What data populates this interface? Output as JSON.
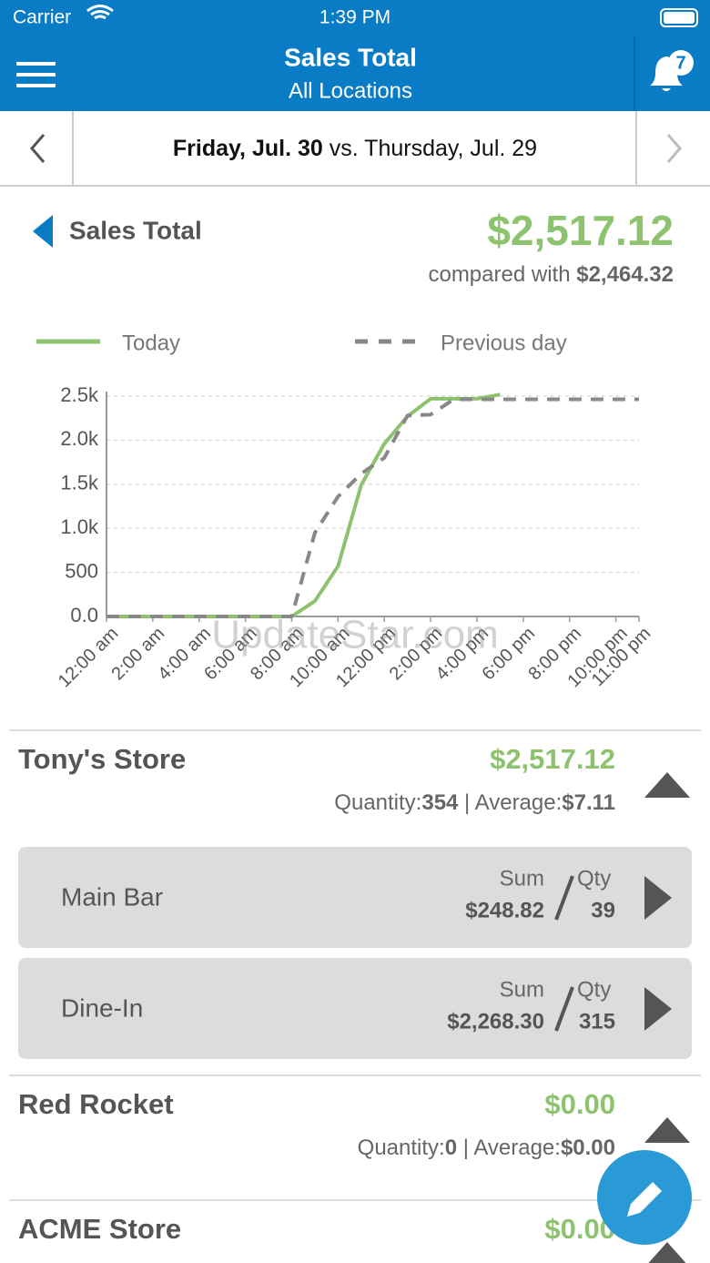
{
  "status_bar": {
    "carrier": "Carrier",
    "time": "1:39 PM"
  },
  "header": {
    "title": "Sales Total",
    "subtitle": "All Locations",
    "badge": "7"
  },
  "date_bar": {
    "date": "Friday, Jul. 30",
    "compare": "vs. Thursday, Jul. 29"
  },
  "summary": {
    "title": "Sales Total",
    "total": "$2,517.12",
    "compared_label": "compared with",
    "compared_value": "$2,464.32"
  },
  "chart_data": {
    "type": "line",
    "x": [
      0,
      1,
      2,
      3,
      4,
      5,
      6,
      7,
      8,
      9,
      10,
      11,
      12,
      13,
      14,
      15,
      16,
      17,
      18,
      19,
      20,
      21,
      22,
      23
    ],
    "xlim": [
      0,
      23
    ],
    "xticks": [
      {
        "value": 0,
        "label": "12:00 am"
      },
      {
        "value": 2,
        "label": "2:00 am"
      },
      {
        "value": 4,
        "label": "4:00 am"
      },
      {
        "value": 6,
        "label": "6:00 am"
      },
      {
        "value": 8,
        "label": "8:00 am"
      },
      {
        "value": 10,
        "label": "10:00 am"
      },
      {
        "value": 12,
        "label": "12:00 pm"
      },
      {
        "value": 14,
        "label": "2:00 pm"
      },
      {
        "value": 16,
        "label": "4:00 pm"
      },
      {
        "value": 18,
        "label": "6:00 pm"
      },
      {
        "value": 20,
        "label": "8:00 pm"
      },
      {
        "value": 22,
        "label": "10:00 pm"
      },
      {
        "value": 23,
        "label": "11:00 pm"
      }
    ],
    "ylim": [
      0,
      2500
    ],
    "yticks": [
      {
        "value": 0,
        "label": "0.0"
      },
      500,
      {
        "value": 1000,
        "label": "1.0k"
      },
      {
        "value": 1500,
        "label": "1.5k"
      },
      {
        "value": 2000,
        "label": "2.0k"
      },
      {
        "value": 2500,
        "label": "2.5k"
      }
    ],
    "grid": true,
    "series": [
      {
        "name": "Today",
        "color": "#8dc26f",
        "dash": false,
        "values": [
          0,
          0,
          0,
          0,
          0,
          0,
          0,
          0,
          0,
          175,
          570,
          1490,
          1960,
          2270,
          2470,
          2470,
          2470,
          2517.12,
          null,
          null,
          null,
          null,
          null,
          null
        ]
      },
      {
        "name": "Previous day",
        "color": "#888888",
        "dash": true,
        "values": [
          0,
          0,
          0,
          0,
          0,
          0,
          0,
          0,
          0,
          950,
          1360,
          1620,
          1800,
          2280,
          2290,
          2464,
          2464,
          2464,
          2464,
          2464,
          2464,
          2464,
          2464,
          2464
        ]
      }
    ]
  },
  "watermark": "UpdateStar.com",
  "labels": {
    "quantity": "Quantity:",
    "average": "Average:",
    "sum": "Sum",
    "qty": "Qty"
  },
  "stores": [
    {
      "name": "Tony's Store",
      "total": "$2,517.12",
      "quantity": "354",
      "average": "$7.11",
      "locations": [
        {
          "name": "Main Bar",
          "sum": "$248.82",
          "qty": "39"
        },
        {
          "name": "Dine-In",
          "sum": "$2,268.30",
          "qty": "315"
        }
      ]
    },
    {
      "name": "Red Rocket",
      "total": "$0.00",
      "quantity": "0",
      "average": "$0.00"
    },
    {
      "name": "ACME Store",
      "total": "$0.00"
    }
  ]
}
